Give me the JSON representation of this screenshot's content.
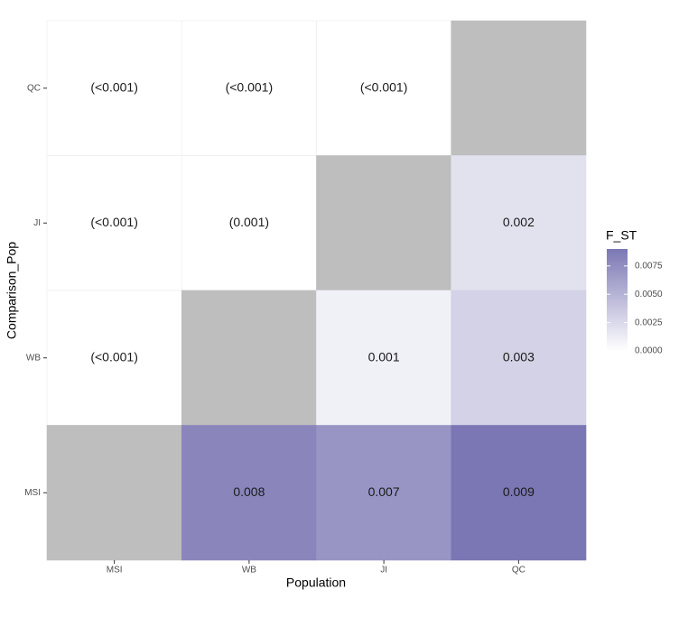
{
  "chart_data": {
    "type": "heatmap",
    "x_label": "Population",
    "y_label": "Comparison_Pop",
    "categories": [
      "MSI",
      "WB",
      "JI",
      "QC"
    ],
    "y_categories": [
      "MSI",
      "WB",
      "JI",
      "QC"
    ],
    "cells": [
      {
        "x": "MSI",
        "y": "QC",
        "label": "(<0.001)"
      },
      {
        "x": "WB",
        "y": "QC",
        "label": "(<0.001)"
      },
      {
        "x": "JI",
        "y": "QC",
        "label": "(<0.001)"
      },
      {
        "x": "QC",
        "y": "QC"
      },
      {
        "x": "MSI",
        "y": "JI",
        "label": "(<0.001)"
      },
      {
        "x": "WB",
        "y": "JI",
        "label": "(0.001)"
      },
      {
        "x": "JI",
        "y": "JI"
      },
      {
        "x": "QC",
        "y": "JI",
        "value": 0.002,
        "label": "0.002"
      },
      {
        "x": "MSI",
        "y": "WB",
        "label": "(<0.001)"
      },
      {
        "x": "WB",
        "y": "WB"
      },
      {
        "x": "JI",
        "y": "WB",
        "value": 0.001,
        "label": "0.001"
      },
      {
        "x": "QC",
        "y": "WB",
        "value": 0.003,
        "label": "0.003"
      },
      {
        "x": "MSI",
        "y": "MSI"
      },
      {
        "x": "WB",
        "y": "MSI",
        "value": 0.008,
        "label": "0.008"
      },
      {
        "x": "JI",
        "y": "MSI",
        "value": 0.007,
        "label": "0.007"
      },
      {
        "x": "QC",
        "y": "MSI",
        "value": 0.009,
        "label": "0.009"
      }
    ],
    "legend_title": "F_ST",
    "clim": [
      0,
      0.009
    ],
    "cticks": [
      {
        "value": 0,
        "label": "0.0000"
      },
      {
        "value": 0.0025,
        "label": "0.0025"
      },
      {
        "value": 0.005,
        "label": "0.0050"
      },
      {
        "value": 0.0075,
        "label": "0.0075"
      }
    ],
    "low_color": "#ffffff",
    "high_color": "#7b77b4",
    "na_color": "#bebebe",
    "blank_color": "#ffffff"
  }
}
